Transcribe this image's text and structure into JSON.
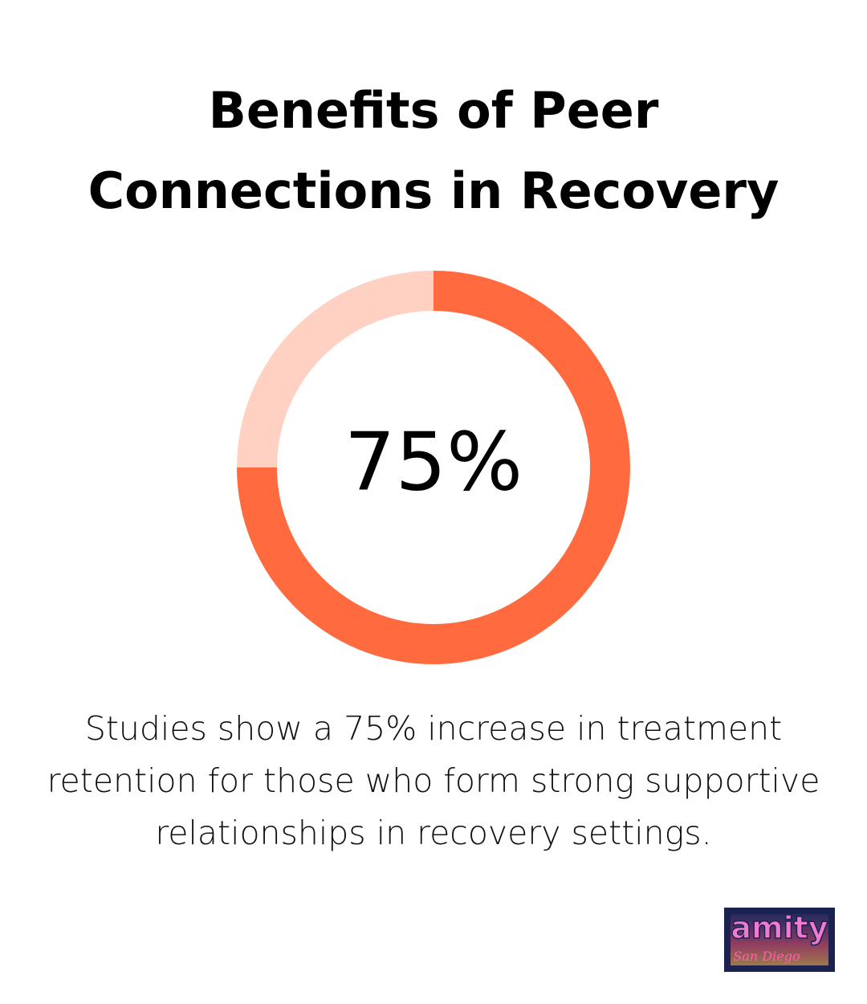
{
  "chart_data": {
    "type": "donut",
    "title": "Benefits of Peer Connections in Recovery",
    "values": [
      75,
      25
    ],
    "value_labels": [
      "75%",
      null
    ],
    "colors": [
      "#ff6a3f",
      "#ffd1c3"
    ],
    "description": "Studies show a 75% increase in treatment retention for those who form strong supportive relationships in recovery settings."
  },
  "logo": {
    "name": "amity",
    "subtitle": "San Diego"
  }
}
